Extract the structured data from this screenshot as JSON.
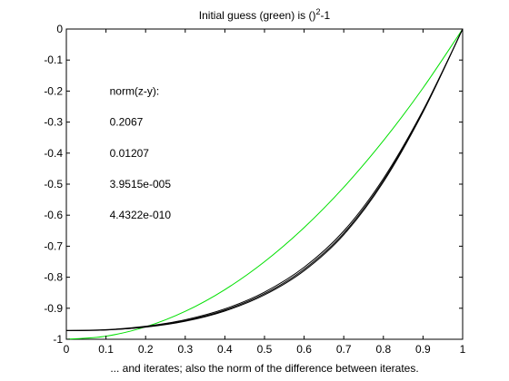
{
  "chart_data": {
    "type": "line",
    "title": "Initial guess (green) is ()",
    "title_sup": "2",
    "title_suffix": "-1",
    "xlabel": "... and iterates; also the norm of the difference between iterates.",
    "ylabel": "",
    "xlim": [
      0,
      1
    ],
    "ylim": [
      -1,
      0
    ],
    "xticks": [
      0,
      0.1,
      0.2,
      0.3,
      0.4,
      0.5,
      0.6,
      0.7,
      0.8,
      0.9,
      1
    ],
    "xtick_labels": [
      "0",
      "0.1",
      "0.2",
      "0.3",
      "0.4",
      "0.5",
      "0.6",
      "0.7",
      "0.8",
      "0.9",
      "1"
    ],
    "yticks": [
      0,
      -0.1,
      -0.2,
      -0.3,
      -0.4,
      -0.5,
      -0.6,
      -0.7,
      -0.8,
      -0.9,
      -1
    ],
    "ytick_labels": [
      "0",
      "-0.1",
      "-0.2",
      "-0.3",
      "-0.4",
      "-0.5",
      "-0.6",
      "-0.7",
      "-0.8",
      "-0.9",
      "-1"
    ],
    "grid": false,
    "annotations": [
      {
        "text": "norm(z-y):",
        "x": 0.1,
        "y": -0.2
      },
      {
        "text": "0.2067",
        "x": 0.1,
        "y": -0.3
      },
      {
        "text": "0.01207",
        "x": 0.1,
        "y": -0.4
      },
      {
        "text": "3.9515e-005",
        "x": 0.1,
        "y": -0.5
      },
      {
        "text": "4.4322e-010",
        "x": 0.1,
        "y": -0.6
      }
    ],
    "series": [
      {
        "color": "#00e000",
        "x": [
          0,
          0.1,
          0.2,
          0.3,
          0.4,
          0.5,
          0.6,
          0.7,
          0.8,
          0.9,
          1
        ],
        "y": [
          -1,
          -0.99,
          -0.96,
          -0.91,
          -0.84,
          -0.75,
          -0.64,
          -0.51,
          -0.36,
          -0.19,
          0
        ]
      },
      {
        "color": "#000000",
        "x": [
          0,
          0.1,
          0.2,
          0.3,
          0.4,
          0.5,
          0.6,
          0.7,
          0.8,
          0.9,
          1
        ],
        "y": [
          -0.972,
          -0.969,
          -0.958,
          -0.937,
          -0.902,
          -0.848,
          -0.768,
          -0.651,
          -0.482,
          -0.262,
          0
        ]
      },
      {
        "color": "#000000",
        "x": [
          0,
          0.1,
          0.2,
          0.3,
          0.4,
          0.5,
          0.6,
          0.7,
          0.8,
          0.9,
          1
        ],
        "y": [
          -0.972,
          -0.97,
          -0.961,
          -0.942,
          -0.909,
          -0.857,
          -0.779,
          -0.663,
          -0.493,
          -0.268,
          0
        ]
      },
      {
        "color": "#000000",
        "x": [
          0,
          0.1,
          0.2,
          0.3,
          0.4,
          0.5,
          0.6,
          0.7,
          0.8,
          0.9,
          1
        ],
        "y": [
          -0.972,
          -0.97,
          -0.96,
          -0.94,
          -0.906,
          -0.853,
          -0.774,
          -0.658,
          -0.488,
          -0.265,
          0
        ]
      }
    ]
  }
}
